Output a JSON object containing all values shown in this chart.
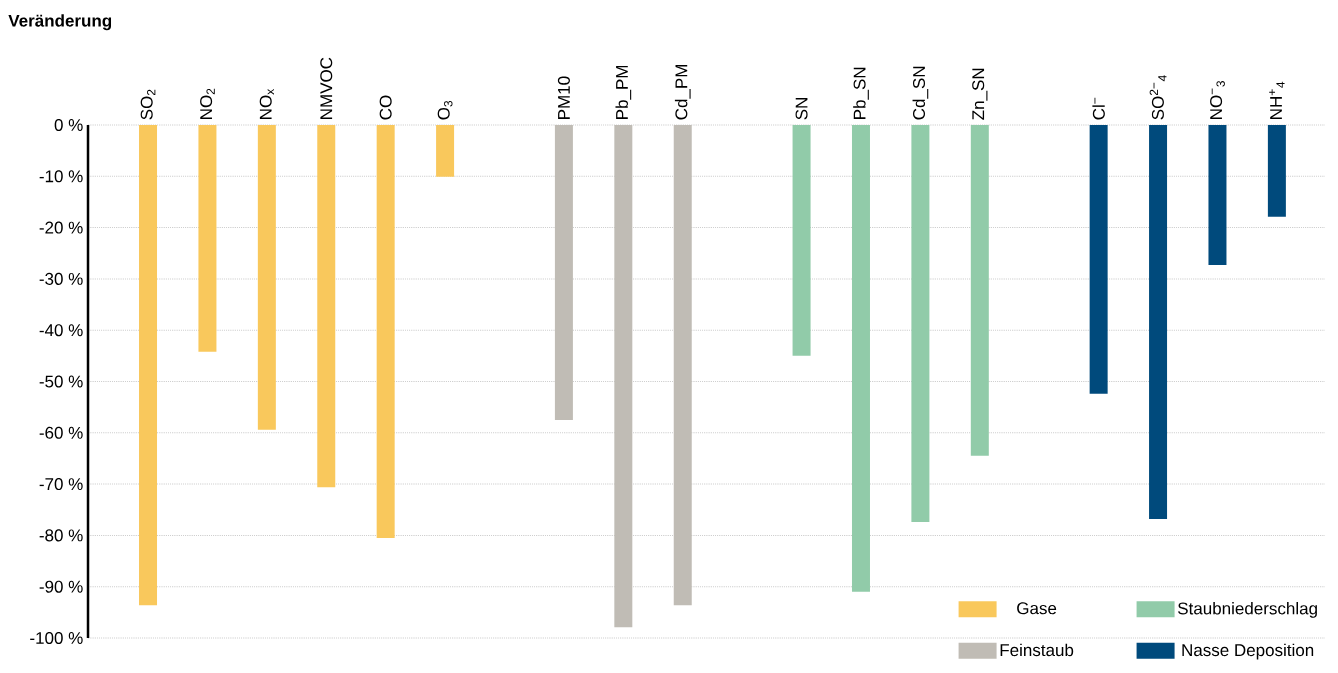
{
  "chart_data": {
    "type": "bar",
    "annotations": [
      "Veränderung"
    ],
    "categories": [
      "SO$_{2}$",
      "NO$_{2}$",
      "NO$_{x}$",
      "NMVOC",
      "CO",
      "O$_{3}$",
      null,
      "PM10",
      "Pb_PM",
      "Cd_PM",
      null,
      "SN",
      "Pb_SN",
      "Cd_SN",
      "Zn_SN",
      null,
      "Cl$^{−}$",
      "SO$^{2−}$$_{4}$",
      "NO$^{−}$$_{3}$",
      "NH$^{+}$$_{4}$"
    ],
    "series": [
      {
        "name": "Gase",
        "color": "#f9c85c",
        "values": [
          -93.6,
          -44.2,
          -59.4,
          -70.6,
          -80.5,
          -10.1,
          null,
          null,
          null,
          null,
          null,
          null,
          null,
          null,
          null,
          null,
          null,
          null,
          null,
          null
        ]
      },
      {
        "name": "Feinstaub",
        "color": "#c0bcb5",
        "values": [
          null,
          null,
          null,
          null,
          null,
          null,
          null,
          -57.5,
          -97.9,
          -93.6,
          null,
          null,
          null,
          null,
          null,
          null,
          null,
          null,
          null,
          null
        ]
      },
      {
        "name": "Staubniederschlag",
        "color": "#91cba9",
        "values": [
          null,
          null,
          null,
          null,
          null,
          null,
          null,
          null,
          null,
          null,
          null,
          -45.0,
          -91.0,
          -77.4,
          -64.5,
          null,
          null,
          null,
          null,
          null
        ]
      },
      {
        "name": "Nasse Deposition",
        "color": "#004a7c",
        "values": [
          null,
          null,
          null,
          null,
          null,
          null,
          null,
          null,
          null,
          null,
          null,
          null,
          null,
          null,
          null,
          null,
          -52.4,
          -76.8,
          -27.3,
          -17.9
        ]
      }
    ],
    "ylim": [
      -100,
      0
    ],
    "yticks": [
      {
        "value": 0,
        "label": "0 %"
      },
      {
        "value": -10,
        "label": "-10 %"
      },
      {
        "value": -20,
        "label": "-20 %"
      },
      {
        "value": -30,
        "label": "-30 %"
      },
      {
        "value": -40,
        "label": "-40 %"
      },
      {
        "value": -50,
        "label": "-50 %"
      },
      {
        "value": -60,
        "label": "-60 %"
      },
      {
        "value": -70,
        "label": "-70 %"
      },
      {
        "value": -80,
        "label": "-80 %"
      },
      {
        "value": -90,
        "label": "-90 %"
      },
      {
        "value": -100,
        "label": "-100 %"
      }
    ],
    "grid": "y",
    "legend": "bottom right"
  }
}
